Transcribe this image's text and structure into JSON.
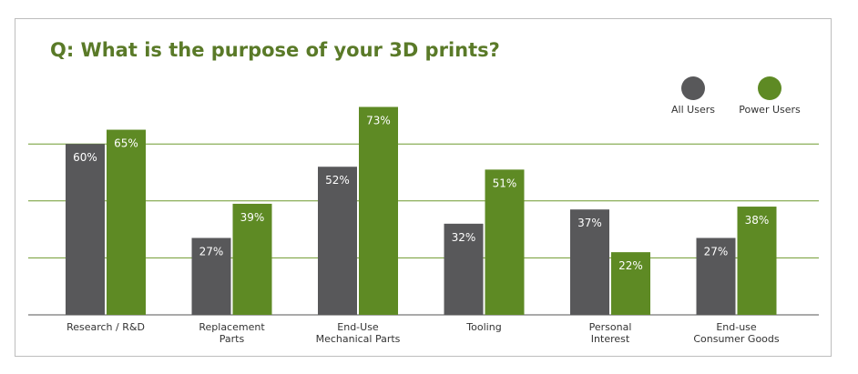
{
  "chart_data": {
    "type": "bar",
    "title": "Q: What is the purpose of your 3D prints?",
    "categories": [
      [
        "Research / R&D"
      ],
      [
        "Replacement",
        "Parts"
      ],
      [
        "End-Use",
        "Mechanical Parts"
      ],
      [
        "Tooling"
      ],
      [
        "Personal",
        "Interest"
      ],
      [
        "End-use",
        "Consumer Goods"
      ]
    ],
    "series": [
      {
        "name": "All Users",
        "color": "#58585a",
        "values": [
          60,
          27,
          52,
          32,
          37,
          27
        ],
        "labels": [
          "60%",
          "27%",
          "52%",
          "32%",
          "37%",
          "27%"
        ]
      },
      {
        "name": "Power Users",
        "color": "#5e8a24",
        "values": [
          65,
          39,
          73,
          51,
          22,
          38
        ],
        "labels": [
          "65%",
          "39%",
          "73%",
          "51%",
          "22%",
          "38%"
        ]
      }
    ],
    "ylim": [
      0,
      80
    ],
    "gridlines": [
      20,
      40,
      60
    ],
    "grid_color": "#6f9a2e",
    "legend_position": "top-right",
    "xlabel": "",
    "ylabel": ""
  }
}
